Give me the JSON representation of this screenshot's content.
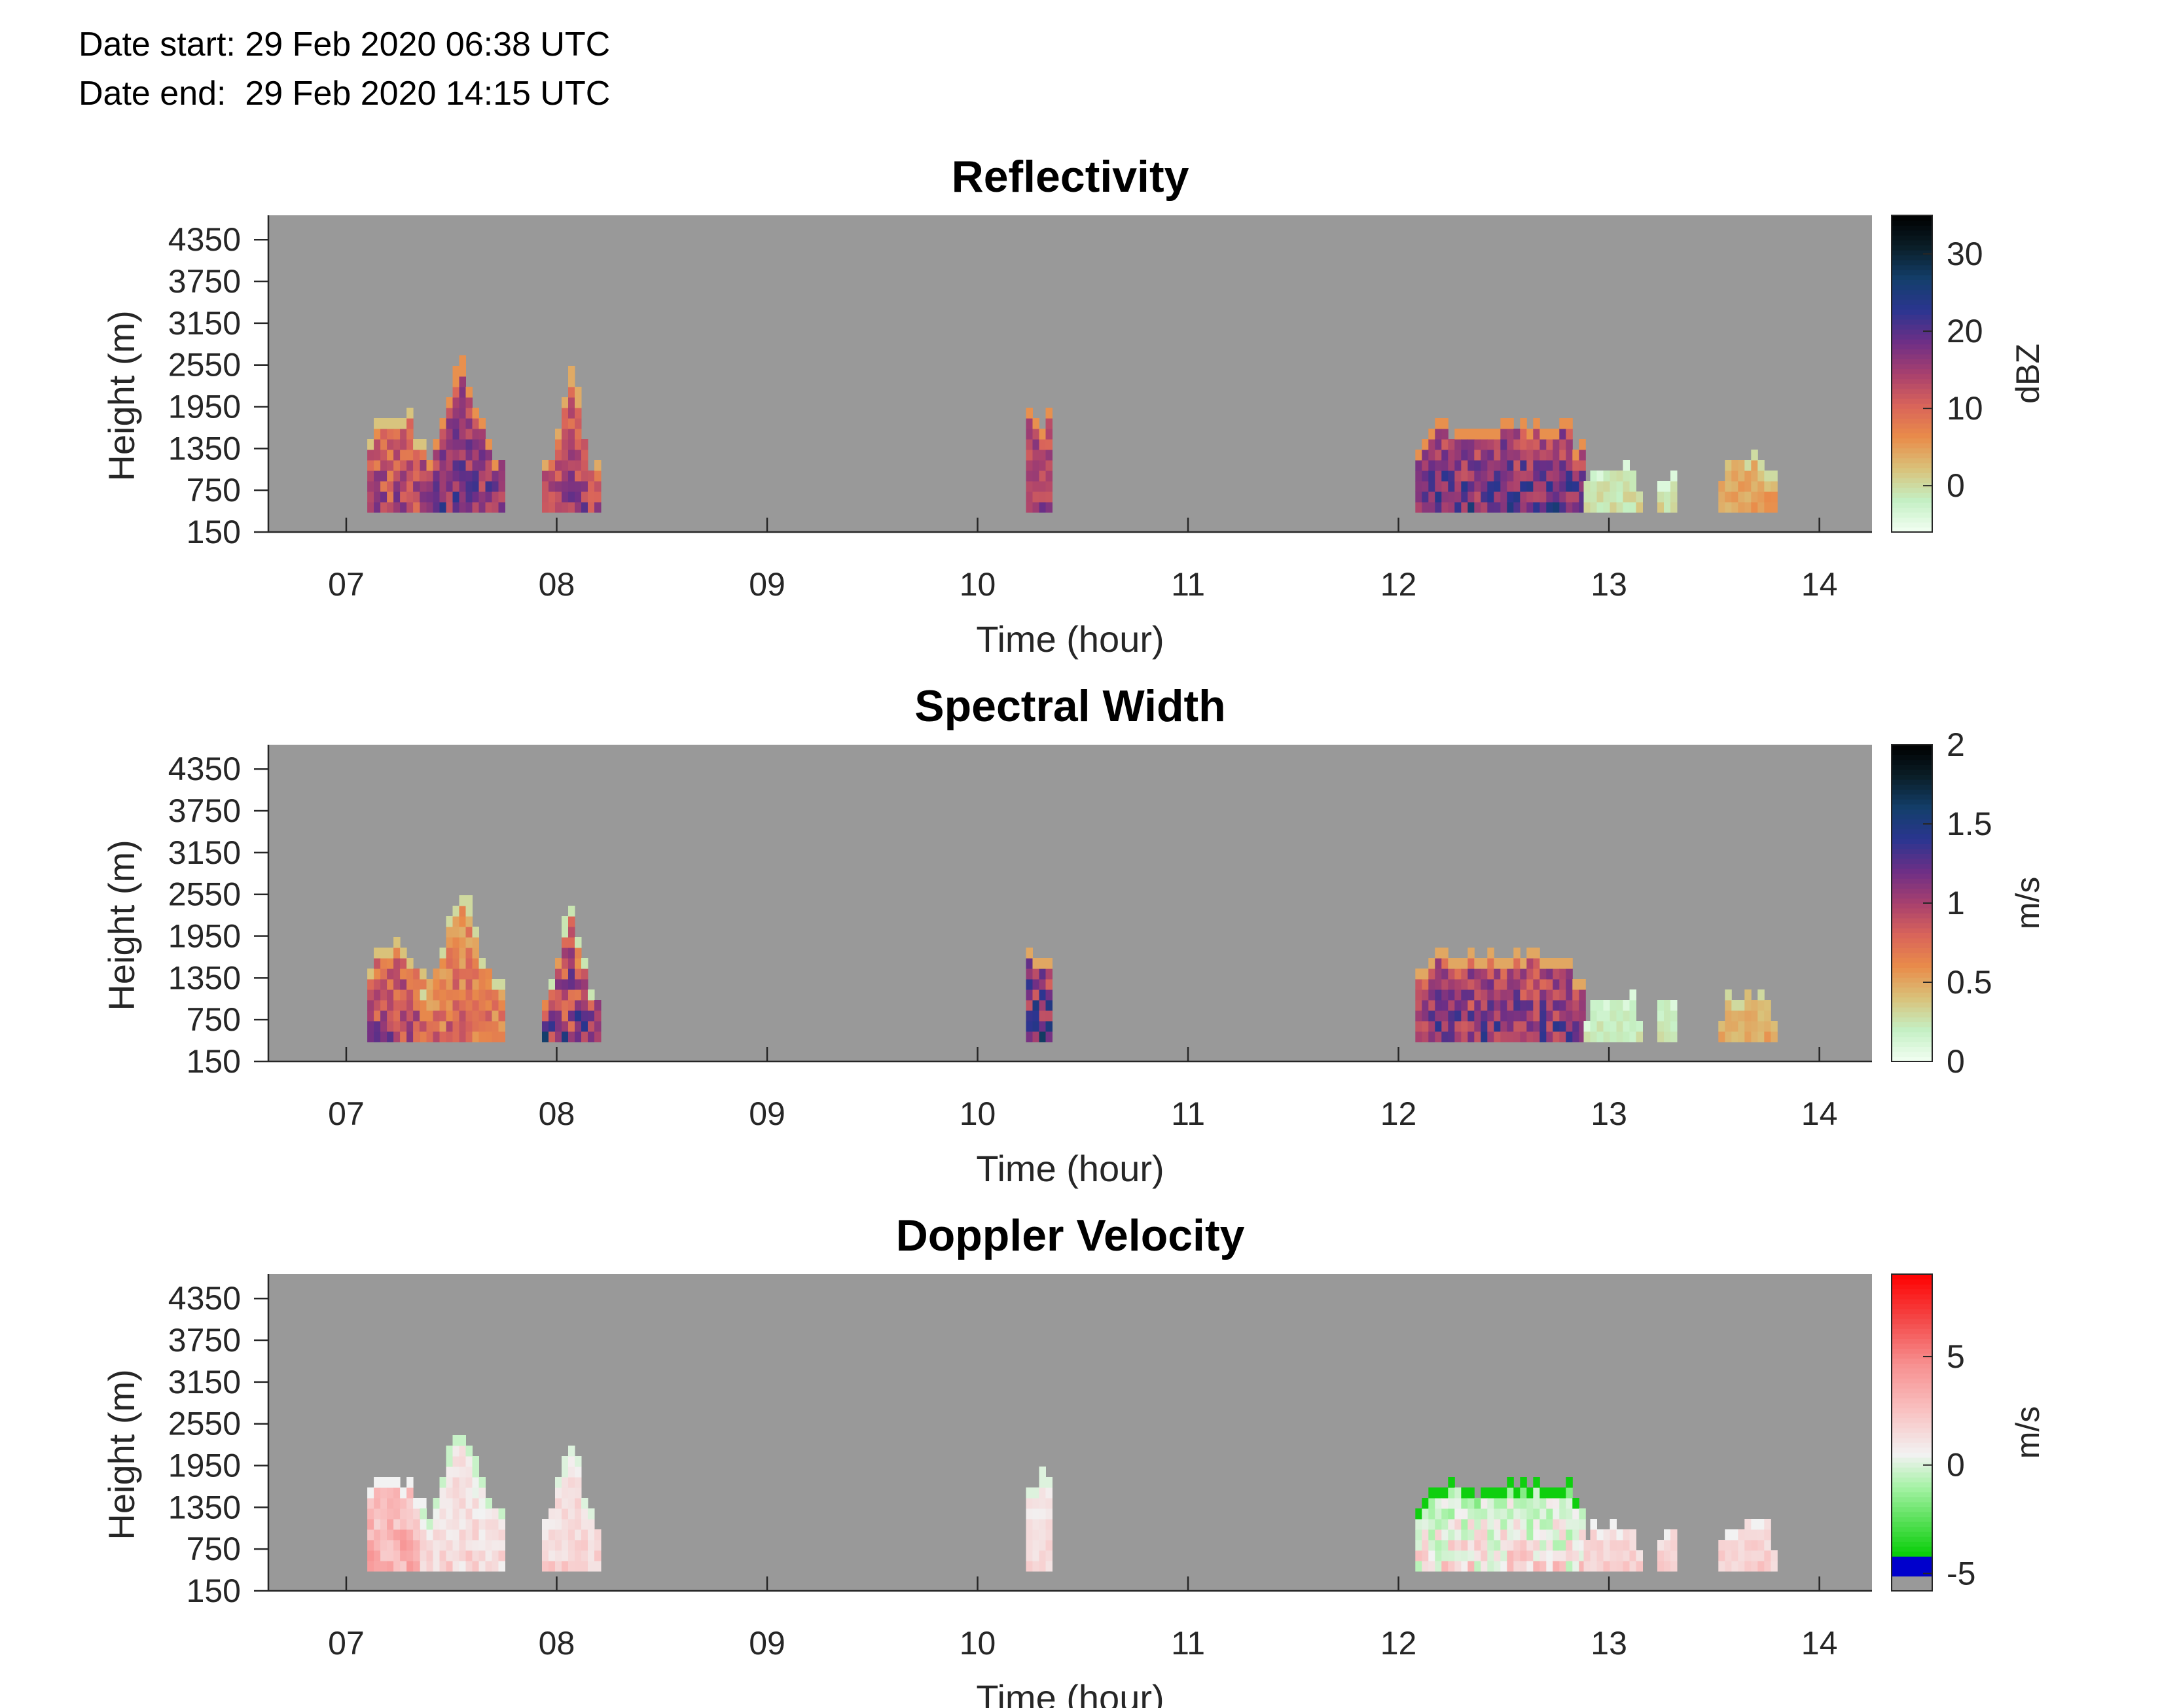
{
  "header": {
    "date_start": "Date start: 29 Feb 2020 06:38 UTC",
    "date_end": "Date end:  29 Feb 2020 14:15 UTC"
  },
  "colors": {
    "background": "#999999",
    "sequential_colormap": [
      "#f3fff3",
      "#c4f0c4",
      "#d9c27a",
      "#e98c4a",
      "#d9645a",
      "#a8406e",
      "#6e2f86",
      "#2b3590",
      "#133f6b",
      "#0a1e28",
      "#000000"
    ],
    "diverging_colormap": [
      "#999999",
      "#0000cc",
      "#00cc00",
      "#a6f2a6",
      "#f2f2f2",
      "#f9c0c0",
      "#f79090",
      "#f44848",
      "#ff0000"
    ]
  },
  "chart_data": [
    {
      "type": "heatmap",
      "title": "Reflectivity",
      "xlabel": "Time (hour)",
      "ylabel": "Height (m)",
      "x_ticks": [
        "07",
        "08",
        "09",
        "10",
        "11",
        "12",
        "13",
        "14"
      ],
      "y_ticks": [
        "150",
        "750",
        "1350",
        "1950",
        "2550",
        "3150",
        "3750",
        "4350"
      ],
      "xlim": [
        6.63,
        14.25
      ],
      "ylim": [
        150,
        4700
      ],
      "colorbar": {
        "label": "dBZ",
        "ticks": [
          "0",
          "10",
          "20",
          "30"
        ],
        "tick_values": [
          0,
          10,
          20,
          30
        ],
        "range": [
          -6,
          35
        ],
        "colormap": "sequential"
      },
      "echoes": [
        {
          "t_start": 7.1,
          "t_end": 7.35,
          "top": 1700,
          "value_min": 2,
          "value_max": 20
        },
        {
          "t_start": 7.35,
          "t_end": 7.75,
          "top": 2500,
          "value_min": 6,
          "value_max": 24
        },
        {
          "t_start": 7.93,
          "t_end": 8.2,
          "top": 2300,
          "value_min": 4,
          "value_max": 20
        },
        {
          "t_start": 10.23,
          "t_end": 10.35,
          "top": 1700,
          "value_min": 6,
          "value_max": 22
        },
        {
          "t_start": 12.08,
          "t_end": 12.88,
          "top": 1600,
          "value_min": 6,
          "value_max": 26
        },
        {
          "t_start": 12.88,
          "t_end": 13.15,
          "top": 1000,
          "value_min": -4,
          "value_max": 2
        },
        {
          "t_start": 13.23,
          "t_end": 13.32,
          "top": 900,
          "value_min": -4,
          "value_max": 2
        },
        {
          "t_start": 13.52,
          "t_end": 13.78,
          "top": 1050,
          "value_min": 0,
          "value_max": 8
        }
      ]
    },
    {
      "type": "heatmap",
      "title": "Spectral Width",
      "xlabel": "Time (hour)",
      "ylabel": "Height (m)",
      "x_ticks": [
        "07",
        "08",
        "09",
        "10",
        "11",
        "12",
        "13",
        "14"
      ],
      "y_ticks": [
        "150",
        "750",
        "1350",
        "1950",
        "2550",
        "3150",
        "3750",
        "4350"
      ],
      "xlim": [
        6.63,
        14.25
      ],
      "ylim": [
        150,
        4700
      ],
      "colorbar": {
        "label": "m/s",
        "ticks": [
          "0",
          "0.5",
          "1",
          "1.5",
          "2"
        ],
        "tick_values": [
          0,
          0.5,
          1,
          1.5,
          2
        ],
        "range": [
          0,
          2
        ],
        "colormap": "sequential"
      },
      "echoes": [
        {
          "t_start": 7.1,
          "t_end": 7.35,
          "top": 1700,
          "value_min": 0.4,
          "value_max": 1.3
        },
        {
          "t_start": 7.35,
          "t_end": 7.75,
          "top": 2500,
          "value_min": 0.3,
          "value_max": 1.0
        },
        {
          "t_start": 7.93,
          "t_end": 8.2,
          "top": 2300,
          "value_min": 0.25,
          "value_max": 1.6
        },
        {
          "t_start": 10.23,
          "t_end": 10.35,
          "top": 1700,
          "value_min": 0.5,
          "value_max": 1.7
        },
        {
          "t_start": 12.08,
          "t_end": 12.88,
          "top": 1600,
          "value_min": 0.5,
          "value_max": 1.5
        },
        {
          "t_start": 12.88,
          "t_end": 13.15,
          "top": 1000,
          "value_min": 0.1,
          "value_max": 0.3
        },
        {
          "t_start": 13.23,
          "t_end": 13.32,
          "top": 900,
          "value_min": 0.1,
          "value_max": 0.3
        },
        {
          "t_start": 13.52,
          "t_end": 13.78,
          "top": 1050,
          "value_min": 0.3,
          "value_max": 0.6
        }
      ]
    },
    {
      "type": "heatmap",
      "title": "Doppler Velocity",
      "xlabel": "Time (hour)",
      "ylabel": "Height (m)",
      "x_ticks": [
        "07",
        "08",
        "09",
        "10",
        "11",
        "12",
        "13",
        "14"
      ],
      "y_ticks": [
        "150",
        "750",
        "1350",
        "1950",
        "2550",
        "3150",
        "3750",
        "4350"
      ],
      "xlim": [
        6.63,
        14.25
      ],
      "ylim": [
        150,
        4700
      ],
      "colorbar": {
        "label": "m/s",
        "ticks": [
          "-5",
          "0",
          "5"
        ],
        "tick_values": [
          -5,
          0,
          5
        ],
        "range": [
          -5.8,
          8.8
        ],
        "colormap": "diverging"
      },
      "echoes": [
        {
          "t_start": 7.1,
          "t_end": 7.35,
          "top": 1700,
          "value_min": 1.5,
          "value_max": 5.5
        },
        {
          "t_start": 7.35,
          "t_end": 7.75,
          "top": 2500,
          "value_min": 0.5,
          "value_max": 3.5
        },
        {
          "t_start": 7.93,
          "t_end": 8.2,
          "top": 2300,
          "value_min": 1.0,
          "value_max": 3.5
        },
        {
          "t_start": 10.23,
          "t_end": 10.35,
          "top": 1700,
          "value_min": 1.0,
          "value_max": 3.0
        },
        {
          "t_start": 12.08,
          "t_end": 12.88,
          "top": 1600,
          "value_min": -2.0,
          "value_max": 4.0
        },
        {
          "t_start": 12.88,
          "t_end": 13.15,
          "top": 1000,
          "value_min": 1.5,
          "value_max": 3.5
        },
        {
          "t_start": 13.23,
          "t_end": 13.32,
          "top": 900,
          "value_min": 1.5,
          "value_max": 3.5
        },
        {
          "t_start": 13.52,
          "t_end": 13.78,
          "top": 1050,
          "value_min": 1.5,
          "value_max": 3.5
        }
      ]
    }
  ]
}
